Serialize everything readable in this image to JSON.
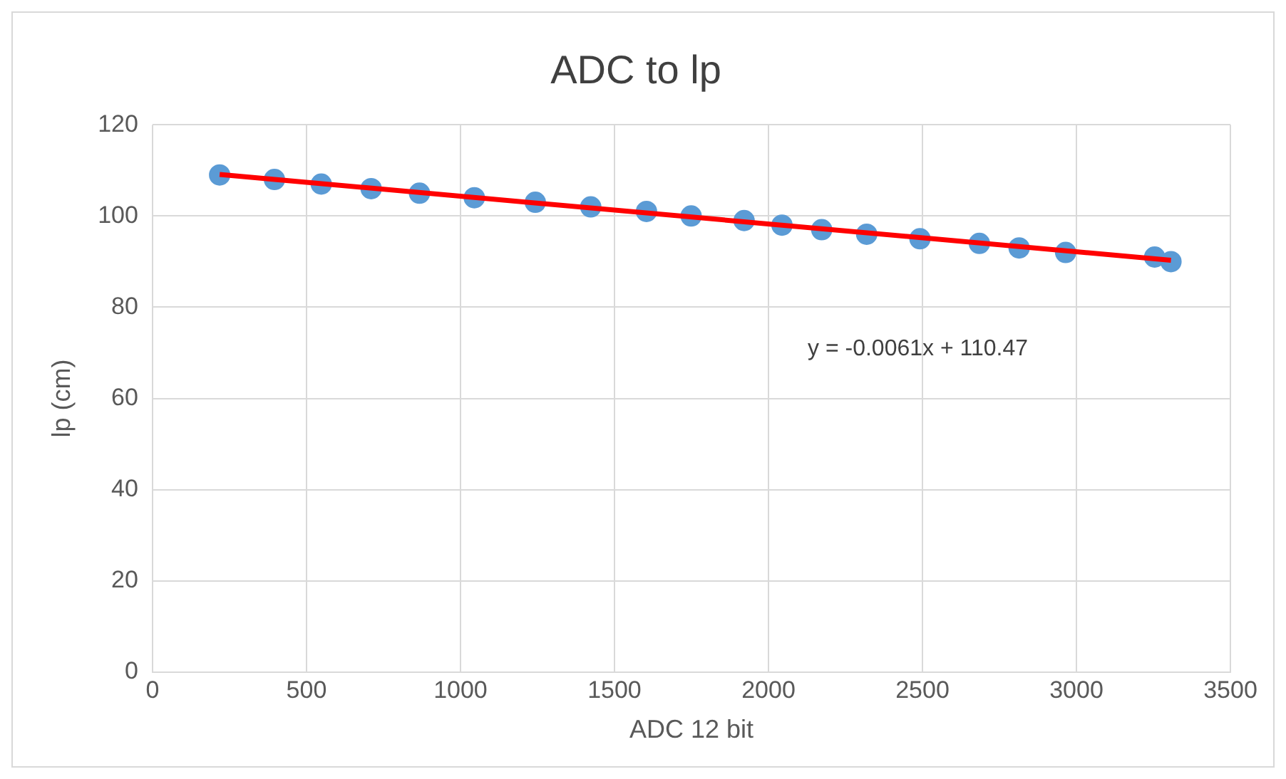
{
  "chart_data": {
    "type": "scatter",
    "title": "ADC to lp",
    "xlabel": "ADC 12 bit",
    "ylabel": "lp (cm)",
    "series": [
      {
        "color": "#5b9bd5",
        "marker": "circle",
        "x": [
          218,
          396,
          548,
          710,
          867,
          1045,
          1243,
          1423,
          1604,
          1749,
          1921,
          2044,
          2173,
          2319,
          2492,
          2685,
          2814,
          2965,
          3254,
          3307
        ],
        "values": [
          109,
          108,
          107,
          106,
          105,
          104,
          103,
          102,
          101,
          100,
          99,
          98,
          97,
          96,
          95,
          94,
          93,
          92,
          91,
          90
        ]
      },
      {
        "type": "line",
        "color": "#ff0000",
        "marker": "none",
        "x": [
          218,
          3307
        ],
        "values": [
          109.1,
          90.3
        ]
      }
    ],
    "annotations": [
      "y = -0.0061x + 110.47"
    ],
    "xlim": [
      0,
      3500
    ],
    "xticks": [
      0,
      500,
      1000,
      1500,
      2000,
      2500,
      3000,
      3500
    ],
    "ylim": [
      0,
      120
    ],
    "yticks": [
      0,
      20,
      40,
      60,
      80,
      100,
      120
    ],
    "grid": true
  }
}
